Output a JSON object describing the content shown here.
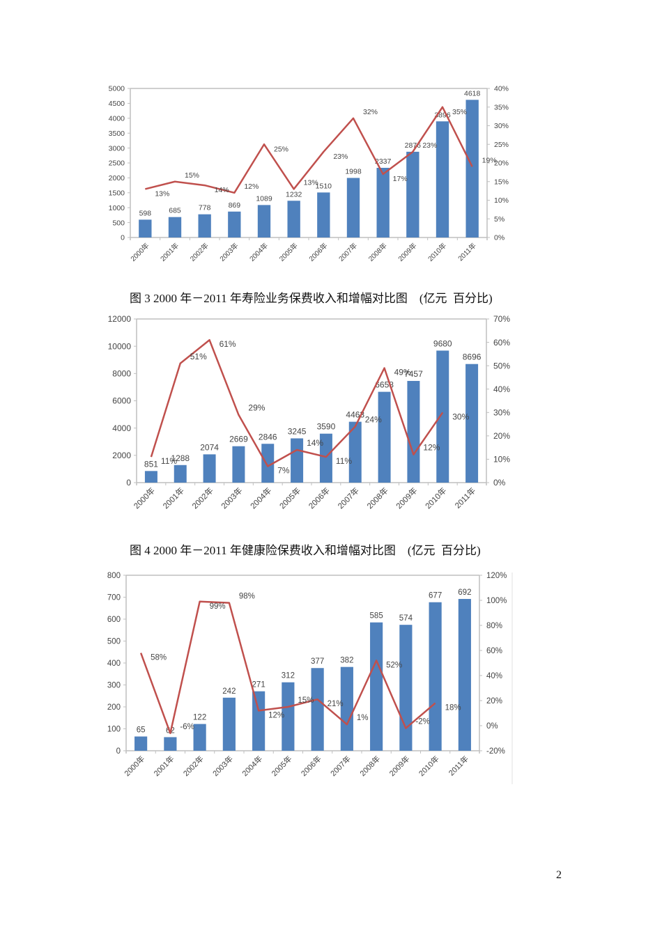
{
  "page": {
    "page_number": "2",
    "figure3_caption": "图 3 2000 年－2011 年寿险业务保费收入和增幅对比图    (亿元  百分比)",
    "figure4_caption": "图 4 2000 年－2011 年健康险保费收入和增幅对比图    (亿元  百分比)"
  },
  "colors": {
    "bar": "#4f81bd",
    "line": "#c0504d",
    "axis": "#bfbfbf",
    "text": "#404040"
  },
  "chart_data": [
    {
      "id": "life-insurance",
      "type": "bar+line",
      "title": "",
      "caption_ref": "figure3_caption",
      "xlabel": "",
      "ylabel": "亿元",
      "y2label": "百分比",
      "categories": [
        "2000年",
        "2001年",
        "2002年",
        "2003年",
        "2004年",
        "2005年",
        "2006年",
        "2007年",
        "2008年",
        "2009年",
        "2010年",
        "2011年"
      ],
      "series": [
        {
          "name": "保费收入",
          "type": "bar",
          "axis": "left",
          "values": [
            598,
            685,
            778,
            869,
            1089,
            1232,
            1510,
            1998,
            2337,
            2876,
            3896,
            4618
          ],
          "labels": [
            "598",
            "685",
            "778",
            "869",
            "1089",
            "1232",
            "1510",
            "1998",
            "2337",
            "2876",
            "3896",
            "4618"
          ]
        },
        {
          "name": "增幅",
          "type": "line",
          "axis": "right",
          "values": [
            13,
            15,
            14,
            12,
            25,
            13,
            23,
            32,
            17,
            23,
            35,
            19
          ],
          "labels": [
            "13%",
            "15%",
            "14%",
            "12%",
            "25%",
            "13%",
            "23%",
            "32%",
            "17%",
            "23%",
            "35%",
            "19%"
          ]
        }
      ],
      "ylim": [
        0,
        5000
      ],
      "yticks": [
        "0",
        "500",
        "1000",
        "1500",
        "2000",
        "2500",
        "3000",
        "3500",
        "4000",
        "4500",
        "5000"
      ],
      "y2lim": [
        0,
        40
      ],
      "y2ticks": [
        "0%",
        "5%",
        "10%",
        "15%",
        "20%",
        "25%",
        "30%",
        "35%",
        "40%"
      ],
      "grid": false,
      "legend": "none"
    },
    {
      "id": "health-insurance-2",
      "type": "bar+line",
      "title": "",
      "caption_ref": "figure4_caption",
      "xlabel": "",
      "ylabel": "",
      "categories": [
        "2000年",
        "2001年",
        "2002年",
        "2003年",
        "2004年",
        "2005年",
        "2006年",
        "2007年",
        "2008年",
        "2009年",
        "2010年",
        "2011年"
      ],
      "series": [
        {
          "name": "保费收入",
          "type": "bar",
          "axis": "left",
          "values": [
            851,
            1288,
            2074,
            2669,
            2846,
            3245,
            3590,
            4463,
            6658,
            7457,
            9680,
            8696
          ],
          "labels": [
            "851",
            "1288",
            "2074",
            "2669",
            "2846",
            "3245",
            "3590",
            "4463",
            "6658",
            "7457",
            "9680",
            "8696"
          ]
        },
        {
          "name": "增幅",
          "type": "line",
          "axis": "right",
          "values": [
            11,
            51,
            61,
            29,
            7,
            14,
            11,
            24,
            49,
            12,
            30,
            null
          ],
          "labels": [
            "11%",
            "51%",
            "61%",
            "29%",
            "7%",
            "14%",
            "11%",
            "24%",
            "49%",
            "12%",
            "30%",
            ""
          ]
        }
      ],
      "ylim": [
        0,
        12000
      ],
      "yticks": [
        "0",
        "2000",
        "4000",
        "6000",
        "8000",
        "10000",
        "12000"
      ],
      "y2lim": [
        0,
        70
      ],
      "y2ticks": [
        "0%",
        "10%",
        "20%",
        "30%",
        "40%",
        "50%",
        "60%",
        "70%"
      ],
      "grid": false,
      "legend": "none"
    },
    {
      "id": "health-insurance-3",
      "type": "bar+line",
      "title": "",
      "xlabel": "",
      "ylabel": "",
      "categories": [
        "2000年",
        "2001年",
        "2002年",
        "2003年",
        "2004年",
        "2005年",
        "2006年",
        "2007年",
        "2008年",
        "2009年",
        "2010年",
        "2011年"
      ],
      "series": [
        {
          "name": "保费收入",
          "type": "bar",
          "axis": "left",
          "values": [
            65,
            62,
            122,
            242,
            271,
            312,
            377,
            382,
            585,
            574,
            677,
            692
          ],
          "labels": [
            "65",
            "62",
            "122",
            "242",
            "271",
            "312",
            "377",
            "382",
            "585",
            "574",
            "677",
            "692"
          ]
        },
        {
          "name": "增幅",
          "type": "line",
          "axis": "right",
          "values": [
            58,
            -6,
            99,
            98,
            12,
            15,
            21,
            1,
            52,
            -2,
            18,
            null
          ],
          "labels": [
            "58%",
            "-6%",
            "99%",
            "98%",
            "12%",
            "15%",
            "21%",
            "1%",
            "52%",
            "-2%",
            "18%",
            ""
          ]
        }
      ],
      "ylim": [
        0,
        800
      ],
      "yticks": [
        "0",
        "100",
        "200",
        "300",
        "400",
        "500",
        "600",
        "700",
        "800"
      ],
      "y2lim": [
        -20,
        120
      ],
      "y2ticks": [
        "-20%",
        "0%",
        "20%",
        "40%",
        "60%",
        "80%",
        "100%",
        "120%"
      ],
      "grid": false,
      "legend": "none"
    }
  ]
}
